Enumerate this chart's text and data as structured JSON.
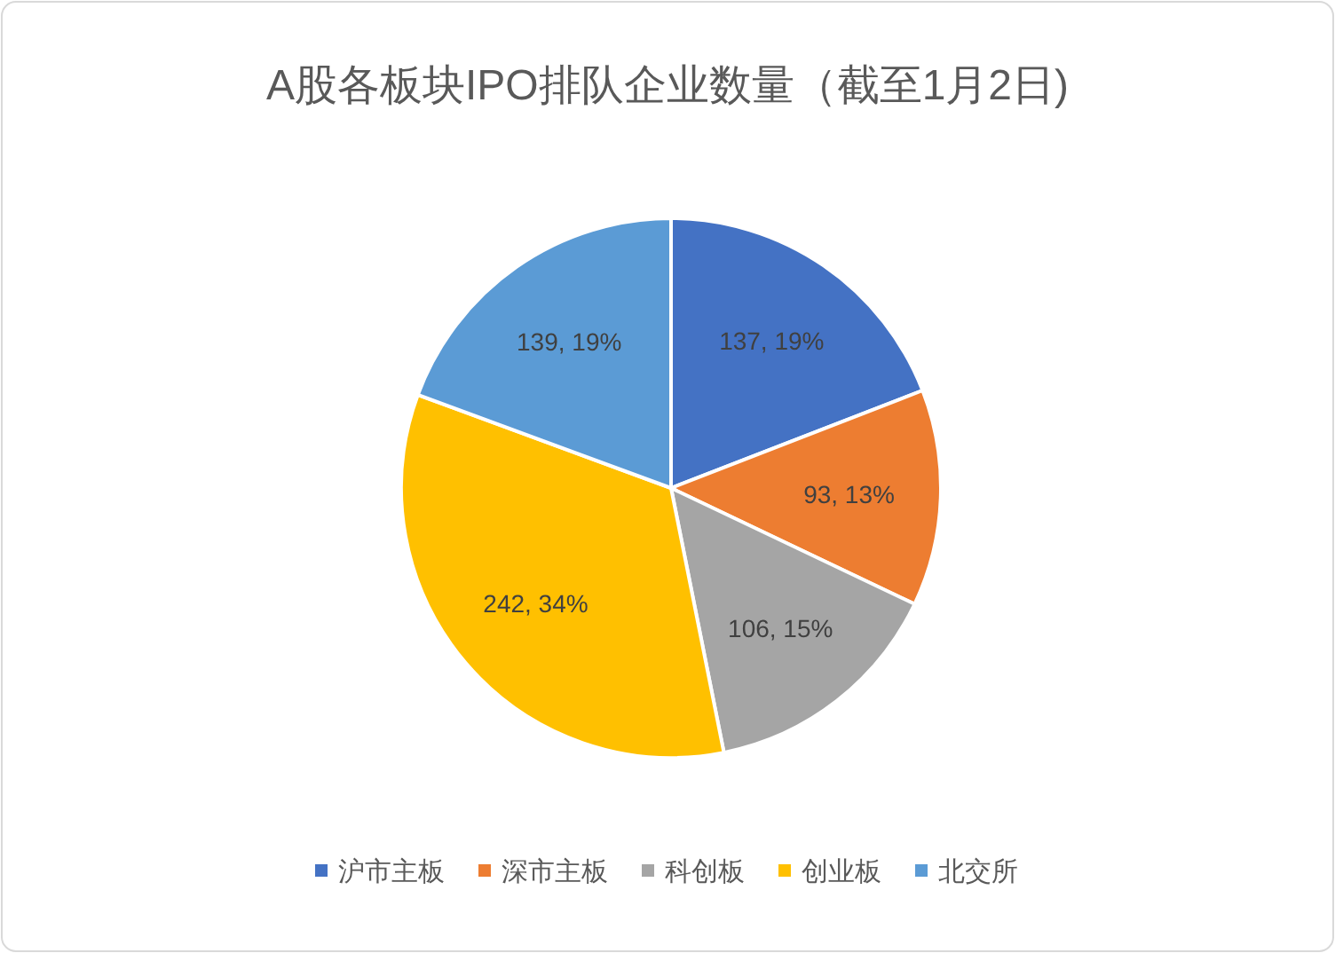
{
  "chart_data": {
    "type": "pie",
    "title": "A股各板块IPO排队企业数量（截至1月2日)",
    "categories": [
      "沪市主板",
      "深市主板",
      "科创板",
      "创业板",
      "北交所"
    ],
    "values": [
      137,
      93,
      106,
      242,
      139
    ],
    "colors": [
      "#4472c4",
      "#ed7d31",
      "#a5a5a5",
      "#ffc000",
      "#5b9bd5"
    ],
    "value_labels": [
      "137, 19%",
      "93, 13%",
      "106, 15%",
      "242, 34%",
      "139, 19%"
    ],
    "legend": "bottom"
  }
}
